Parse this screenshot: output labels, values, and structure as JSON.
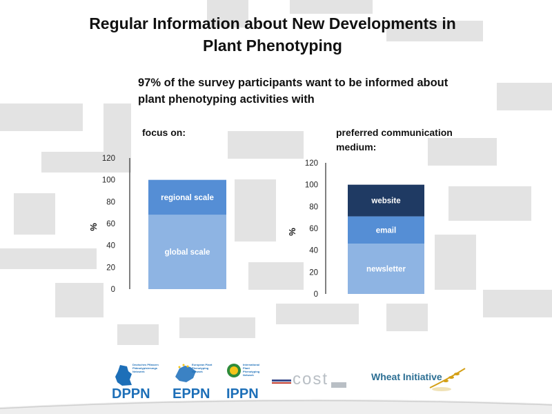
{
  "slide": {
    "title_line1": "Regular Information about New Developments in",
    "title_line2": "Plant Phenotyping",
    "subtitle_line1": "97% of the survey participants want to be informed about",
    "subtitle_line2": "plant phenotyping activities with"
  },
  "chart_data": [
    {
      "type": "bar",
      "stacked": true,
      "heading": "focus on:",
      "ylabel": "%",
      "ylim": [
        0,
        120
      ],
      "yticks": [
        "0",
        "20",
        "40",
        "60",
        "80",
        "100",
        "120"
      ],
      "series": [
        {
          "name": "global scale",
          "values": [
            68
          ],
          "color": "#8eb4e3"
        },
        {
          "name": "regional scale",
          "values": [
            32
          ],
          "color": "#558ed5"
        }
      ]
    },
    {
      "type": "bar",
      "stacked": true,
      "heading_line1": "preferred communication",
      "heading_line2": "medium:",
      "ylabel": "%",
      "ylim": [
        0,
        120
      ],
      "yticks": [
        "0",
        "20",
        "40",
        "60",
        "80",
        "100",
        "120"
      ],
      "series": [
        {
          "name": "newsletter",
          "values": [
            46
          ],
          "color": "#8eb4e3"
        },
        {
          "name": "email",
          "values": [
            25
          ],
          "color": "#558ed5"
        },
        {
          "name": "website",
          "values": [
            29
          ],
          "color": "#1f3a63"
        }
      ]
    }
  ],
  "footer": {
    "logos": [
      {
        "name": "DPPN",
        "caption": "Deutsches Pflanzen Phänotypisierungs Netzwerk",
        "color": "#1d6fb8"
      },
      {
        "name": "EPPN",
        "caption": "European Plant Phenotyping Network",
        "color": "#1d6fb8"
      },
      {
        "name": "IPPN",
        "caption": "International Plant Phenotyping Network",
        "color": "#1d6fb8"
      },
      {
        "name": "cost",
        "caption": "",
        "color": "#9aa4ad"
      },
      {
        "name": "Wheat Initiative",
        "caption": "",
        "color": "#2b6e93"
      }
    ]
  }
}
